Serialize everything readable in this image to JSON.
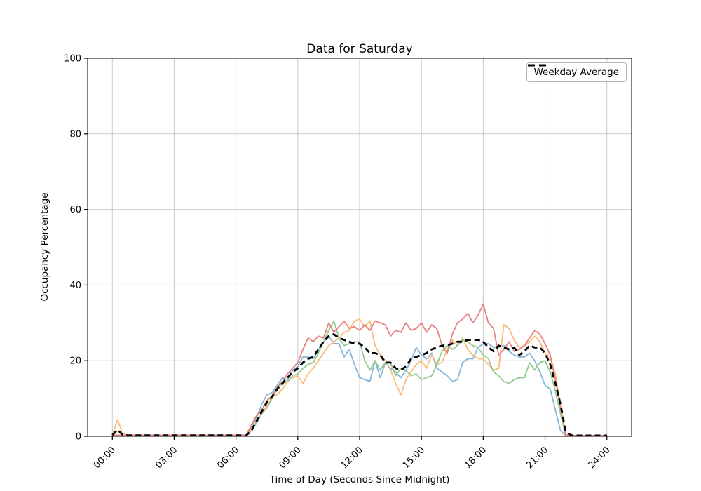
{
  "chart_data": {
    "type": "line",
    "title": "Data for Saturday",
    "xlabel": "Time of Day (Seconds Since Midnight)",
    "ylabel": "Occupancy Percentage",
    "ylim": [
      0,
      100
    ],
    "x_range_hours": [
      0,
      24
    ],
    "x_step_hours": 0.25,
    "grid": true,
    "grid_color": "#c9c9c9",
    "axis_color": "#000000",
    "text_color": "#000000",
    "background_color": "#ffffff",
    "y_ticks": [
      {
        "value": 0,
        "label": "0"
      },
      {
        "value": 20,
        "label": "20"
      },
      {
        "value": 40,
        "label": "40"
      },
      {
        "value": 60,
        "label": "60"
      },
      {
        "value": 80,
        "label": "80"
      },
      {
        "value": 100,
        "label": "100"
      }
    ],
    "x_ticks": [
      {
        "hour": 0,
        "label": "00:00"
      },
      {
        "hour": 3,
        "label": "03:00"
      },
      {
        "hour": 6,
        "label": "06:00"
      },
      {
        "hour": 9,
        "label": "09:00"
      },
      {
        "hour": 12,
        "label": "12:00"
      },
      {
        "hour": 15,
        "label": "15:00"
      },
      {
        "hour": 18,
        "label": "18:00"
      },
      {
        "hour": 21,
        "label": "21:00"
      },
      {
        "hour": 24,
        "label": "24:00"
      }
    ],
    "legend": {
      "position": "upper right",
      "label": "Weekday Average"
    },
    "series": [
      {
        "id": "saturday-series-blue",
        "color": "#85b5d7",
        "width": 1.8,
        "dash": null,
        "values": [
          0.3,
          0.3,
          0.3,
          0.3,
          0.3,
          0.3,
          0.3,
          0.3,
          0.3,
          0.3,
          0.3,
          0.3,
          0.3,
          0.3,
          0.3,
          0.3,
          0.3,
          0.3,
          0.3,
          0.3,
          0.3,
          0.3,
          0.3,
          0.3,
          0.3,
          0.3,
          0.3,
          2.5,
          5,
          8.5,
          11,
          11.5,
          13.5,
          15.5,
          15,
          17.5,
          18.5,
          21,
          21,
          20.5,
          23,
          25,
          26.5,
          24.5,
          24.5,
          21,
          23,
          19,
          15.5,
          15,
          14.5,
          20,
          15.5,
          19.5,
          18,
          17,
          15.5,
          17.5,
          20,
          23.5,
          21.5,
          20.5,
          22,
          18,
          17,
          16,
          14.5,
          15,
          19.5,
          20.5,
          20.5,
          23.5,
          24.5,
          24.5,
          23.5,
          23.5,
          24,
          22.5,
          21.5,
          21,
          21,
          22,
          20,
          17,
          13.5,
          12.5,
          7,
          1.5,
          0.2,
          0.2,
          0.2,
          0.2,
          0.2,
          0.2,
          0.2,
          0.2,
          0.2
        ]
      },
      {
        "id": "saturday-series-orange",
        "color": "#fcbb7d",
        "width": 1.8,
        "dash": null,
        "values": [
          0.5,
          4.4,
          0.8,
          0.3,
          0.3,
          0.3,
          0.3,
          0.3,
          0.3,
          0.3,
          0.3,
          0.3,
          0.3,
          0.3,
          0.3,
          0.3,
          0.3,
          0.3,
          0.3,
          0.3,
          0.3,
          0.3,
          0.3,
          0.3,
          0.3,
          0.3,
          0.3,
          2,
          4,
          6,
          8,
          10.5,
          11,
          12.5,
          14.5,
          15.5,
          16,
          14,
          16.5,
          18,
          20,
          22,
          24,
          25,
          26,
          27.5,
          28,
          30.5,
          31,
          29,
          30.5,
          24,
          21.5,
          20,
          17.5,
          14,
          11,
          15,
          17,
          19,
          20,
          18,
          21.5,
          19,
          19.5,
          23,
          25.5,
          24,
          26,
          23,
          21.5,
          20.5,
          20.5,
          19,
          17.5,
          18,
          29.5,
          28.5,
          25.5,
          23.5,
          24,
          25,
          26.5,
          25,
          22,
          21,
          16.5,
          8,
          0.5,
          0.2,
          0.2,
          0.2,
          0.2,
          0.2,
          0.2,
          0.2,
          0.2
        ]
      },
      {
        "id": "saturday-series-green",
        "color": "#8fcb8f",
        "width": 1.8,
        "dash": null,
        "values": [
          0.3,
          0.3,
          0.3,
          0.3,
          0.3,
          0.3,
          0.3,
          0.3,
          0.3,
          0.3,
          0.3,
          0.3,
          0.3,
          0.3,
          0.3,
          0.3,
          0.3,
          0.3,
          0.3,
          0.3,
          0.3,
          0.3,
          0.3,
          0.3,
          0.3,
          0.3,
          0.3,
          1.5,
          3.5,
          6,
          7.5,
          10,
          12.5,
          14,
          14.5,
          16,
          16.5,
          18,
          19,
          19.5,
          22,
          25,
          28,
          30.5,
          26,
          24,
          24.5,
          25,
          25,
          20,
          17.5,
          20,
          17.5,
          19.5,
          19.5,
          16,
          18,
          17.5,
          16,
          16.5,
          15,
          15.5,
          16,
          19,
          22.5,
          24,
          23,
          24,
          25.5,
          25,
          24,
          23.5,
          21.5,
          20.5,
          17,
          16,
          14.5,
          14,
          15,
          15.5,
          15.5,
          19.5,
          17.5,
          19.5,
          20,
          17,
          12,
          6,
          0.3,
          0.2,
          0.2,
          0.2,
          0.2,
          0.2,
          0.2,
          0.2,
          0.2
        ]
      },
      {
        "id": "saturday-series-red",
        "color": "#e8807e",
        "width": 1.8,
        "dash": null,
        "values": [
          0.3,
          0.3,
          0.3,
          0.3,
          0.3,
          0.3,
          0.3,
          0.3,
          0.3,
          0.3,
          0.3,
          0.3,
          0.3,
          0.3,
          0.3,
          0.3,
          0.3,
          0.3,
          0.3,
          0.3,
          0.3,
          0.3,
          0.3,
          0.3,
          0.3,
          0.3,
          0.3,
          3,
          5.5,
          7,
          9.5,
          10.5,
          13,
          14.5,
          16.5,
          18,
          19.5,
          23,
          26,
          25,
          26.5,
          26,
          30,
          27.5,
          29,
          30.5,
          28.5,
          29,
          28,
          29.5,
          28,
          30.5,
          30,
          29.5,
          26.5,
          28,
          27.5,
          30,
          28,
          28.5,
          30,
          27.5,
          29.5,
          28.5,
          24,
          22,
          27,
          30,
          31,
          32.5,
          30,
          32,
          35,
          30,
          28.5,
          21.5,
          23,
          25,
          22.5,
          23,
          24,
          26,
          28,
          27,
          24.5,
          21.5,
          15,
          7.5,
          0.3,
          0.2,
          0.2,
          0.2,
          0.2,
          0.2,
          0.2,
          0.2,
          0.2
        ]
      },
      {
        "id": "weekday-average-line",
        "name": "Weekday Average",
        "color": "#000000",
        "width": 2.8,
        "dash": [
          8,
          5
        ],
        "in_legend": true,
        "values": [
          0.3,
          1.7,
          0.4,
          0.25,
          0.25,
          0.25,
          0.25,
          0.25,
          0.25,
          0.25,
          0.25,
          0.25,
          0.25,
          0.25,
          0.25,
          0.25,
          0.25,
          0.25,
          0.25,
          0.25,
          0.25,
          0.25,
          0.25,
          0.25,
          0.25,
          0.25,
          0.25,
          1.5,
          4,
          6.5,
          9,
          10.5,
          12.5,
          14,
          15.5,
          17,
          18,
          19.5,
          20.5,
          21,
          23,
          25,
          26.5,
          27,
          26,
          25.5,
          25,
          24.5,
          24.5,
          23.5,
          22,
          22,
          21.5,
          19.5,
          19.5,
          18,
          17.5,
          18.5,
          20.5,
          21,
          21.5,
          22,
          23,
          23.5,
          24,
          24,
          24.5,
          25,
          25,
          25.5,
          25.5,
          25.5,
          25,
          23.5,
          22.5,
          24,
          23.5,
          23,
          23.5,
          21.5,
          22.5,
          24,
          23.5,
          23.5,
          22,
          19,
          14,
          8.5,
          1.2,
          0.3,
          0.2,
          0.2,
          0.2,
          0.2,
          0.2,
          0.2,
          0.2
        ]
      }
    ]
  }
}
